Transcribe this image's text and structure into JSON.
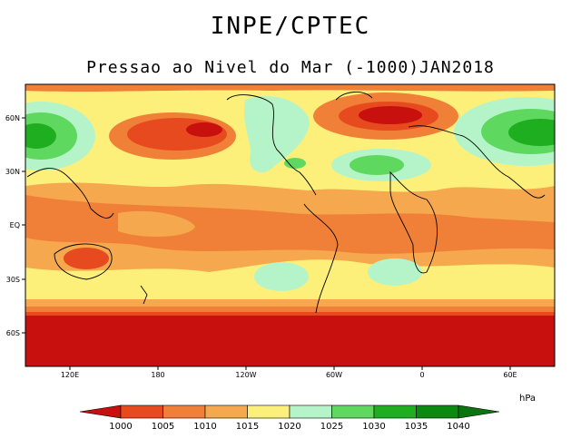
{
  "header": {
    "title": "INPE/CPTEC",
    "subtitle": "Pressao ao Nivel do Mar (-1000)JAN2018"
  },
  "map": {
    "lat_ticks": [
      "60N",
      "30N",
      "EQ",
      "30S",
      "60S"
    ],
    "lon_ticks": [
      "120E",
      "180",
      "120W",
      "60W",
      "0",
      "60E"
    ]
  },
  "colorbar": {
    "unit": "hPa",
    "levels": [
      "1000",
      "1005",
      "1010",
      "1015",
      "1020",
      "1025",
      "1030",
      "1035",
      "1040"
    ],
    "colors": [
      "#c8100f",
      "#e64a1e",
      "#f08038",
      "#f5a84e",
      "#fdf07a",
      "#b5f4c8",
      "#5fd860",
      "#1fae20",
      "#0a8a10",
      "#0a7410"
    ]
  }
}
